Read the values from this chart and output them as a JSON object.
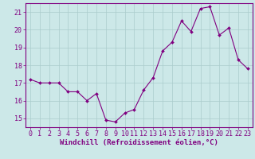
{
  "x": [
    0,
    1,
    2,
    3,
    4,
    5,
    6,
    7,
    8,
    9,
    10,
    11,
    12,
    13,
    14,
    15,
    16,
    17,
    18,
    19,
    20,
    21,
    22,
    23
  ],
  "y": [
    17.2,
    17.0,
    17.0,
    17.0,
    16.5,
    16.5,
    16.0,
    16.4,
    14.9,
    14.8,
    15.3,
    15.5,
    16.6,
    17.3,
    18.8,
    19.3,
    20.5,
    19.9,
    21.2,
    21.3,
    19.7,
    20.1,
    18.3,
    17.8
  ],
  "xlim": [
    -0.5,
    23.5
  ],
  "ylim": [
    14.5,
    21.5
  ],
  "yticks": [
    15,
    16,
    17,
    18,
    19,
    20,
    21
  ],
  "xticks": [
    0,
    1,
    2,
    3,
    4,
    5,
    6,
    7,
    8,
    9,
    10,
    11,
    12,
    13,
    14,
    15,
    16,
    17,
    18,
    19,
    20,
    21,
    22,
    23
  ],
  "xlabel": "Windchill (Refroidissement éolien,°C)",
  "line_color": "#800080",
  "marker_color": "#800080",
  "bg_color": "#cce8e8",
  "grid_color": "#aacccc",
  "axis_color": "#800080",
  "tick_color": "#800080",
  "label_color": "#800080",
  "font_size": 6.0,
  "xlabel_size": 6.5
}
